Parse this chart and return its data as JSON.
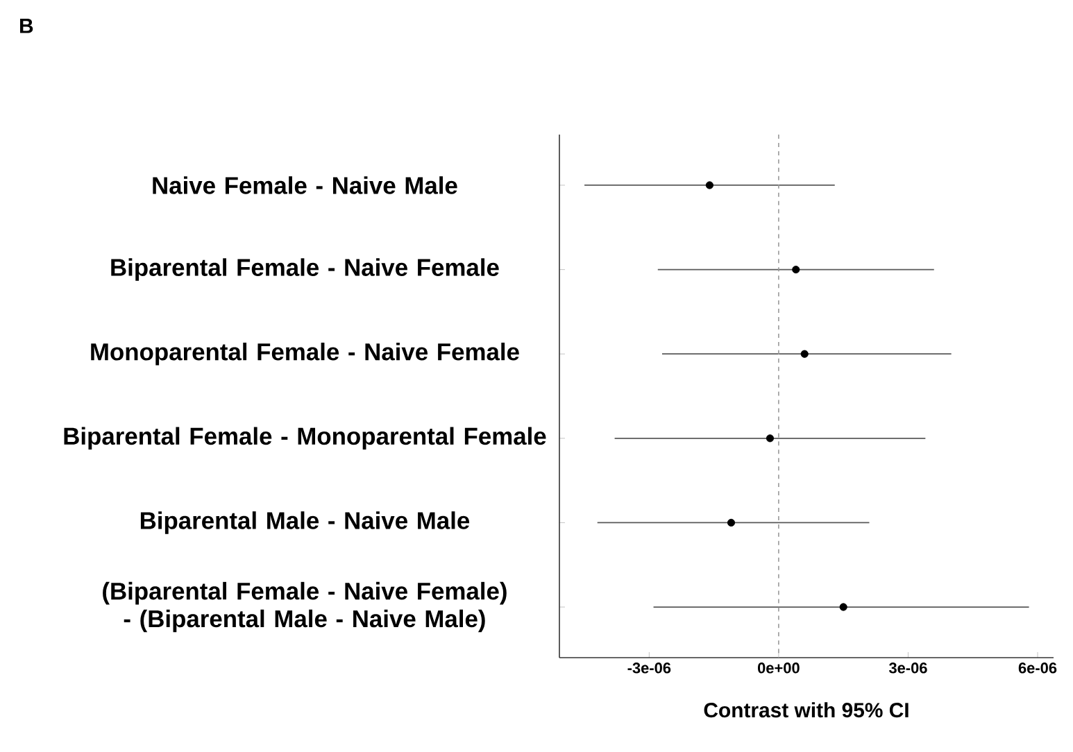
{
  "chart_data": {
    "type": "scatter",
    "orientation": "horizontal",
    "annotations": [
      "B"
    ],
    "xlabel": "Contrast with 95% CI",
    "categories": [
      "Naive Female - Naive Male",
      "Biparental Female - Naive Female",
      "Monoparental Female - Naive Female",
      "Biparental Female - Monoparental Female",
      "Biparental Male - Naive Male",
      "(Biparental Female - Naive Female) - (Biparental Male - Naive Male)"
    ],
    "values": [
      -1.6e-06,
      4e-07,
      6e-07,
      -2e-07,
      -1.1e-06,
      1.5e-06
    ],
    "errors": [
      [
        -4.5e-06,
        1.3e-06
      ],
      [
        -2.8e-06,
        3.6e-06
      ],
      [
        -2.7e-06,
        4e-06
      ],
      [
        -3.8e-06,
        3.4e-06
      ],
      [
        -4.2e-06,
        2.1e-06
      ],
      [
        -2.9e-06,
        5.8e-06
      ]
    ],
    "color": "#000000",
    "marker": "circle",
    "xlim": [
      -5.08e-06,
      6.37e-06
    ],
    "xticks": [
      {
        "value": -3e-06,
        "label": "-3e-06"
      },
      {
        "value": 0,
        "label": "0e+00"
      },
      {
        "value": 3e-06,
        "label": "3e-06"
      },
      {
        "value": 6e-06,
        "label": "6e-06"
      }
    ],
    "ref_lines": [
      {
        "axis": "x",
        "value": 0,
        "color": "#999999",
        "line_style": "dashed"
      }
    ]
  }
}
